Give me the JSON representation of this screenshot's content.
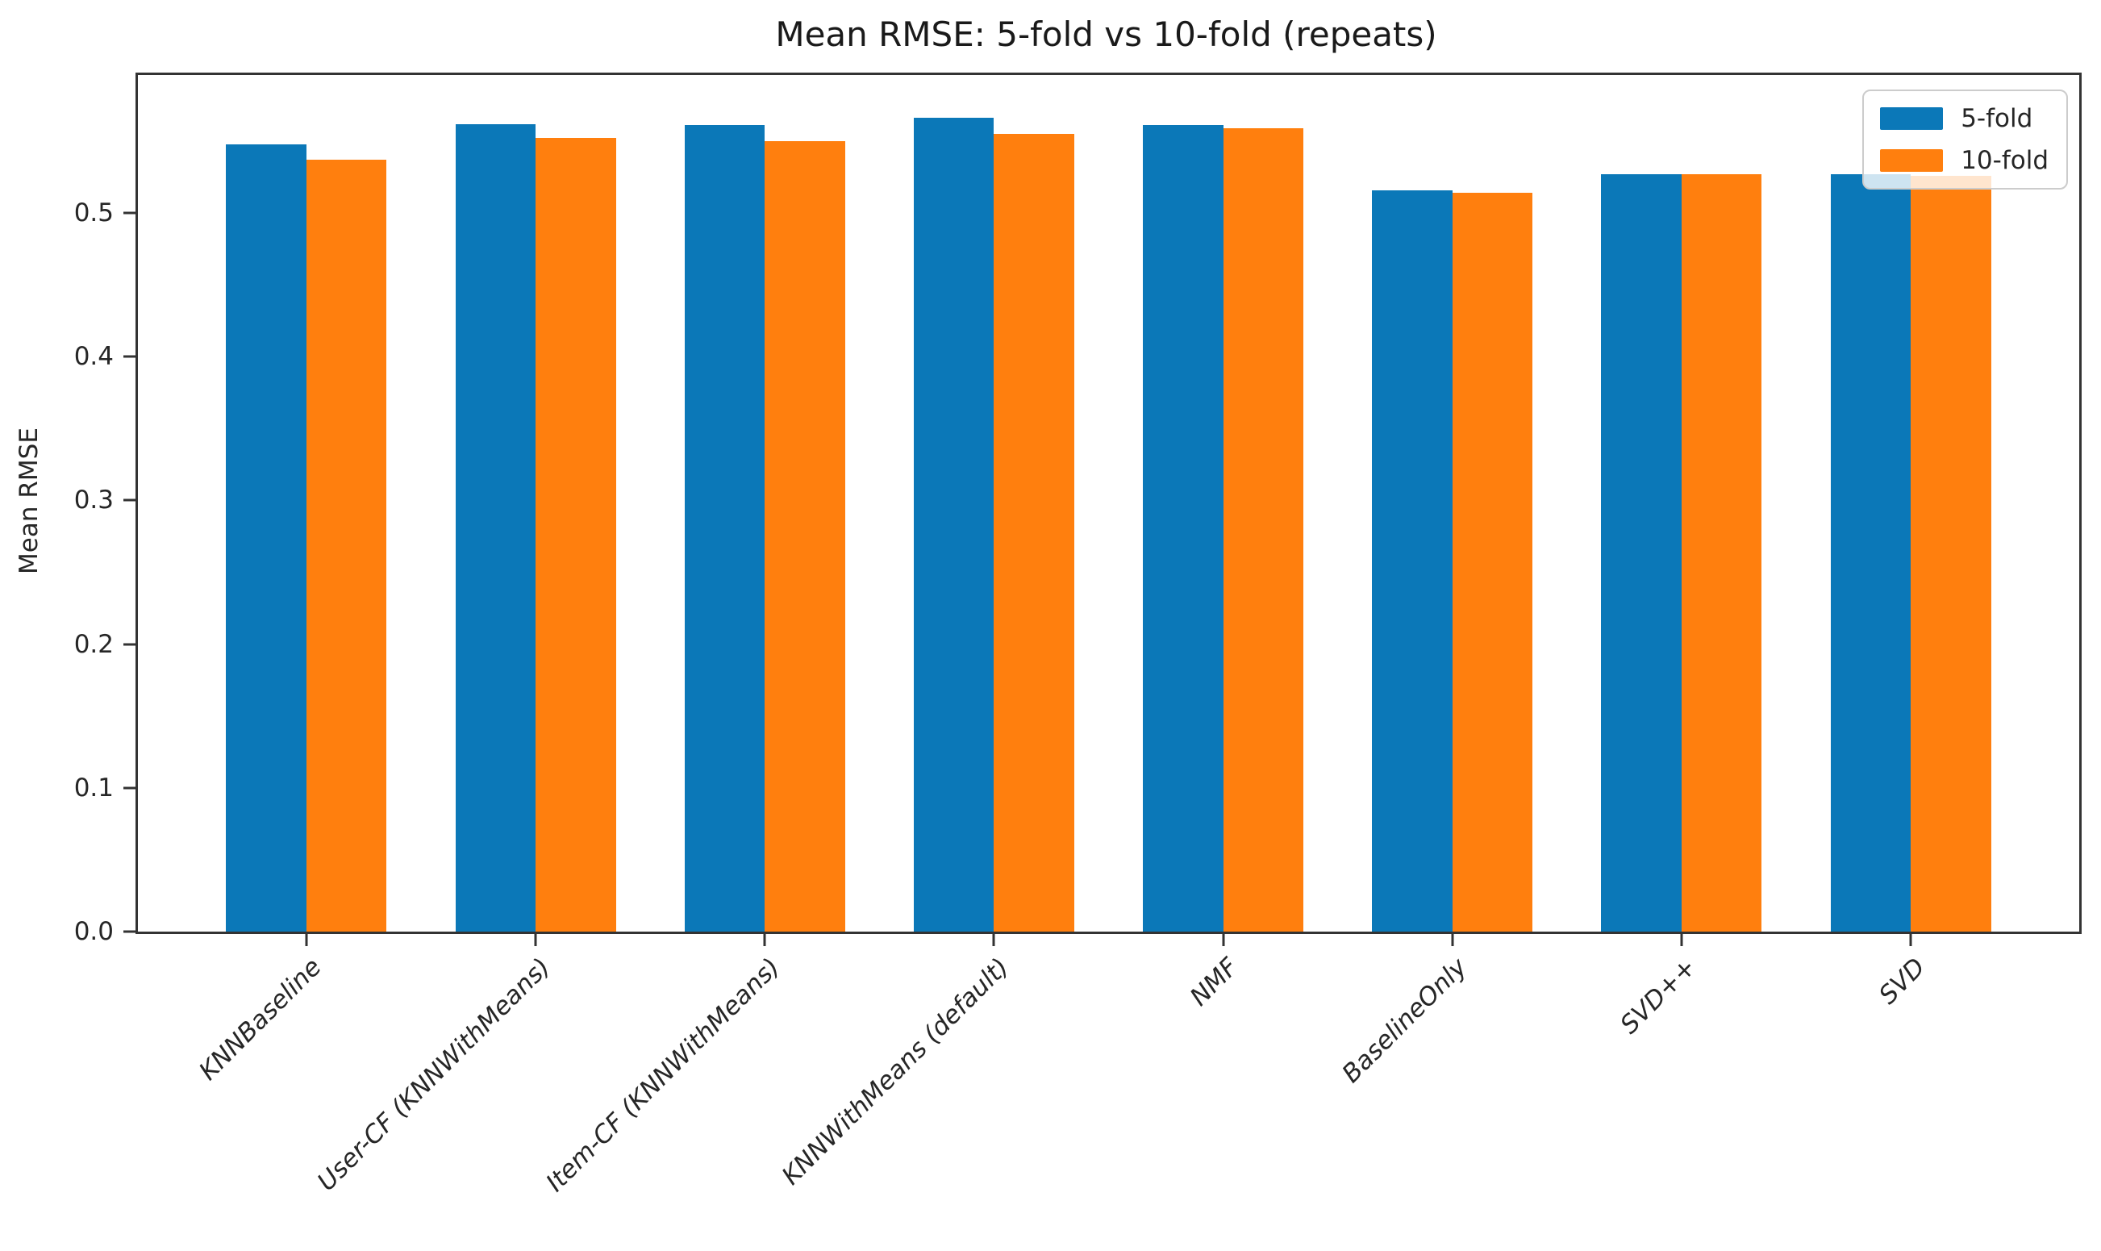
{
  "chart_data": {
    "type": "bar",
    "title": "Mean RMSE: 5-fold vs 10-fold (repeats)",
    "xlabel": "",
    "ylabel": "Mean RMSE",
    "categories": [
      "KNNBaseline",
      "User-CF (KNNWithMeans)",
      "Item-CF (KNNWithMeans)",
      "KNNWithMeans (default)",
      "NMF",
      "BaselineOnly",
      "SVD++",
      "SVD"
    ],
    "series": [
      {
        "name": "5-fold",
        "color": "#0b78b8",
        "values": [
          0.548,
          0.562,
          0.561,
          0.566,
          0.561,
          0.516,
          0.527,
          0.527
        ]
      },
      {
        "name": "10-fold",
        "color": "#ff7f0e",
        "values": [
          0.537,
          0.552,
          0.55,
          0.555,
          0.559,
          0.514,
          0.527,
          0.526
        ]
      }
    ],
    "ylim": [
      0,
      0.596
    ],
    "yticks": [
      0.0,
      0.1,
      0.2,
      0.3,
      0.4,
      0.5
    ],
    "xlim": [
      -0.735,
      7.735
    ],
    "bar_width_units": 0.35,
    "legend_position": "upper right",
    "grid": false,
    "axis_color": "#333333",
    "text_color": "#262626"
  }
}
